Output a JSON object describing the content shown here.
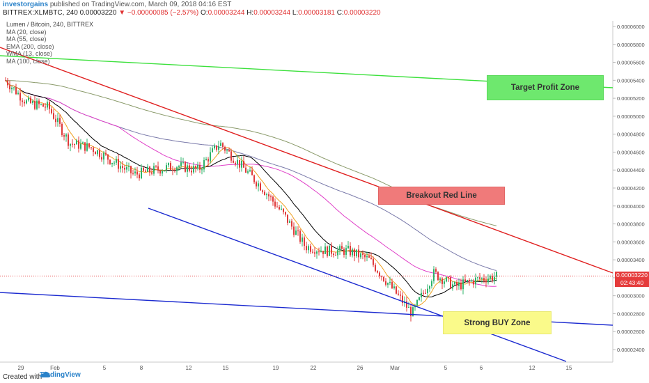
{
  "header": {
    "author": "investorgains",
    "published_text": "published on TradingView.com, March 09, 2018 04:16 EST",
    "symbol_line": "BITTREX:XLMBTC, 240",
    "price": "0.00003220",
    "down_glyph": "▼",
    "change": "−0.00000085 (−2.57%)",
    "o_label": "O:",
    "o_value": "0.00003244",
    "h_label": "H:",
    "h_value": "0.00003244",
    "l_label": "L:",
    "l_value": "0.00003181",
    "c_label": "C:",
    "c_value": "0.00003220"
  },
  "legend": {
    "title": "Lumen / Bitcoin, 240, BITTREX",
    "items": [
      "MA (20, close)",
      "MA (55, close)",
      "EMA (200, close)",
      "WMA (13, close)",
      "MA (100, close)"
    ]
  },
  "zones": {
    "profit": "Target Profit Zone",
    "breakout": "Breakout Red Line",
    "buy": "Strong BUY Zone"
  },
  "price_tag": {
    "price": "0.00003220",
    "countdown": "02:43:40"
  },
  "footer": {
    "created_with": "Created with",
    "brand": "TradingView"
  },
  "colors": {
    "ma20": "#000000",
    "ma55": "#e040c8",
    "ema200": "#8a9a6a",
    "wma13": "#f0a020",
    "ma100": "#7a7aaa",
    "up": "#2db36a",
    "down": "#e03a3a",
    "green_line": "#3ce03c",
    "red_line": "#e02020",
    "blue_line": "#1c2bd0"
  },
  "chart_data": {
    "type": "line",
    "symbol": "XLMBTC",
    "interval": "240",
    "x_ticks": [
      "29",
      "Feb",
      "5",
      "8",
      "12",
      "15",
      "19",
      "22",
      "26",
      "Mar",
      "5",
      "6",
      "12",
      "15"
    ],
    "y_ticks": [
      "0.00006000",
      "0.00005800",
      "0.00005600",
      "0.00005400",
      "0.00005200",
      "0.00005000",
      "0.00004800",
      "0.00004600",
      "0.00004400",
      "0.00004200",
      "0.00004000",
      "0.00003800",
      "0.00003600",
      "0.00003400",
      "0.00003200",
      "0.00003000",
      "0.00002800",
      "0.00002600",
      "0.00002400"
    ],
    "ylim": [
      2.32e-05,
      6.08e-05
    ],
    "price_close_series": [
      [
        "29",
        5.4e-05
      ],
      [
        "29",
        5.15e-05
      ],
      [
        "Feb",
        5.1e-05
      ],
      [
        "Feb",
        4.7e-05
      ],
      [
        "5",
        4.65e-05
      ],
      [
        "5",
        4.5e-05
      ],
      [
        "8",
        4.35e-05
      ],
      [
        "8",
        4.4e-05
      ],
      [
        "12",
        4.45e-05
      ],
      [
        "12",
        4.4e-05
      ],
      [
        "15",
        4.7e-05
      ],
      [
        "15",
        4.45e-05
      ],
      [
        "19",
        4.2e-05
      ],
      [
        "19",
        3.9e-05
      ],
      [
        "22",
        3.55e-05
      ],
      [
        "22",
        3.5e-05
      ],
      [
        "26",
        3.5e-05
      ],
      [
        "26",
        3.4e-05
      ],
      [
        "Mar",
        3.1e-05
      ],
      [
        "Mar",
        2.8e-05
      ],
      [
        "5",
        3.25e-05
      ],
      [
        "5",
        3.1e-05
      ],
      [
        "6",
        3.18e-05
      ],
      [
        "6",
        3.22e-05
      ]
    ],
    "trend_lines": [
      {
        "color": "green",
        "from": [
          "29",
          5.7e-05
        ],
        "to": [
          "15+",
          5.32e-05
        ]
      },
      {
        "color": "red",
        "from": [
          "29",
          5.8e-05
        ],
        "to": [
          "15+",
          3.23e-05
        ]
      },
      {
        "color": "blue",
        "from": [
          "8",
          3.98e-05
        ],
        "to": [
          "15",
          2.37e-05
        ]
      },
      {
        "color": "blue",
        "from": [
          "29",
          3.03e-05
        ],
        "to": [
          "15+",
          2.65e-05
        ]
      }
    ],
    "annotations": [
      "Target Profit Zone",
      "Breakout Red Line",
      "Strong BUY Zone"
    ],
    "last_price": 3.22e-05,
    "grid": false
  }
}
